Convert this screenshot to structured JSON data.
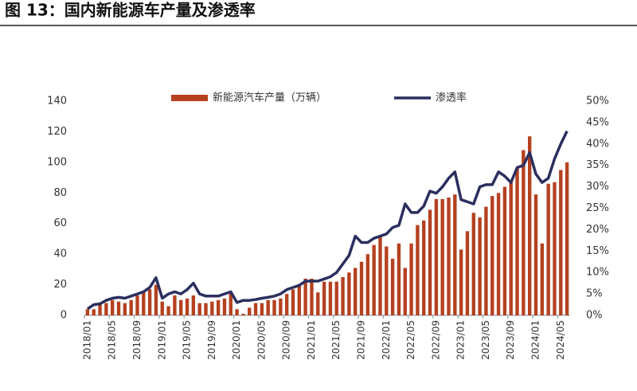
{
  "chart_data": {
    "type": "bar-line",
    "title": "图 13：国内新能源车产量及渗透率",
    "categories": [
      "2018/01",
      null,
      null,
      null,
      "2018/05",
      null,
      null,
      null,
      "2018/09",
      null,
      null,
      null,
      "2019/01",
      null,
      null,
      null,
      "2019/05",
      null,
      null,
      null,
      "2019/09",
      null,
      null,
      null,
      "2020/01",
      null,
      null,
      null,
      "2020/05",
      null,
      null,
      null,
      "2020/09",
      null,
      null,
      null,
      "2021/01",
      null,
      null,
      null,
      "2021/05",
      null,
      null,
      null,
      "2021/09",
      null,
      null,
      null,
      "2022/01",
      null,
      null,
      null,
      "2022/05",
      null,
      null,
      null,
      "2022/09",
      null,
      null,
      null,
      "2023/01",
      null,
      null,
      null,
      "2023/05",
      null,
      null,
      null,
      "2023/09",
      null,
      null,
      null,
      "2024/01",
      null,
      null,
      null,
      "2024/05",
      null
    ],
    "series": [
      {
        "name": "新能源汽车产量（万辆）",
        "color": "#b5411f",
        "kind": "bar",
        "values": [
          4,
          4,
          7,
          8,
          10,
          9,
          8,
          10,
          13,
          15,
          17,
          20,
          9,
          6,
          13,
          10,
          11,
          13,
          8,
          8,
          9,
          10,
          11,
          15,
          4,
          1,
          5,
          8,
          8,
          10,
          10,
          11,
          14,
          17,
          20,
          24,
          24,
          15,
          22,
          22,
          22,
          25,
          28,
          31,
          35,
          40,
          46,
          52,
          45,
          37,
          47,
          31,
          47,
          59,
          62,
          69,
          76,
          76,
          77,
          79,
          43,
          55,
          67,
          64,
          71,
          78,
          80,
          84,
          88,
          96,
          108,
          117,
          79,
          47,
          86,
          87,
          95,
          100
        ]
      },
      {
        "name": "渗透率",
        "color": "#2b2f5e",
        "kind": "line",
        "axis": "y2",
        "values": [
          1.5,
          2.5,
          2.7,
          3.5,
          4.0,
          4.2,
          4.0,
          4.5,
          5.0,
          5.5,
          6.5,
          8.8,
          4.0,
          5.0,
          5.5,
          5.0,
          6.0,
          7.5,
          5.0,
          4.5,
          4.5,
          4.5,
          5.0,
          5.5,
          3.0,
          3.5,
          3.5,
          3.7,
          4.0,
          4.2,
          4.5,
          5.0,
          6.0,
          6.5,
          7.0,
          8.0,
          8.0,
          8.0,
          8.5,
          9.0,
          10.0,
          12.0,
          14.0,
          18.5,
          17.0,
          17.0,
          18.0,
          18.5,
          19.0,
          20.5,
          21.0,
          26.0,
          24.0,
          24.0,
          25.5,
          29.0,
          28.5,
          30.0,
          32.0,
          33.5,
          27.0,
          26.5,
          26.0,
          30.0,
          30.5,
          30.5,
          33.5,
          32.5,
          31.0,
          34.5,
          35.0,
          38.0,
          33.0,
          31.0,
          32.0,
          36.5,
          40.0,
          43.0
        ]
      }
    ],
    "ylim": [
      0,
      140
    ],
    "yticks": [
      0,
      20,
      40,
      60,
      80,
      100,
      120,
      140
    ],
    "y2lim": [
      0,
      50
    ],
    "y2ticks": [
      {
        "value": 0,
        "label": "0%"
      },
      {
        "value": 5,
        "label": "5%"
      },
      {
        "value": 10,
        "label": "10%"
      },
      {
        "value": 15,
        "label": "15%"
      },
      {
        "value": 20,
        "label": "20%"
      },
      {
        "value": 25,
        "label": "25%"
      },
      {
        "value": 30,
        "label": "30%"
      },
      {
        "value": 35,
        "label": "35%"
      },
      {
        "value": 40,
        "label": "40%"
      },
      {
        "value": 45,
        "label": "45%"
      },
      {
        "value": 50,
        "label": "50%"
      }
    ],
    "legend": "top"
  }
}
